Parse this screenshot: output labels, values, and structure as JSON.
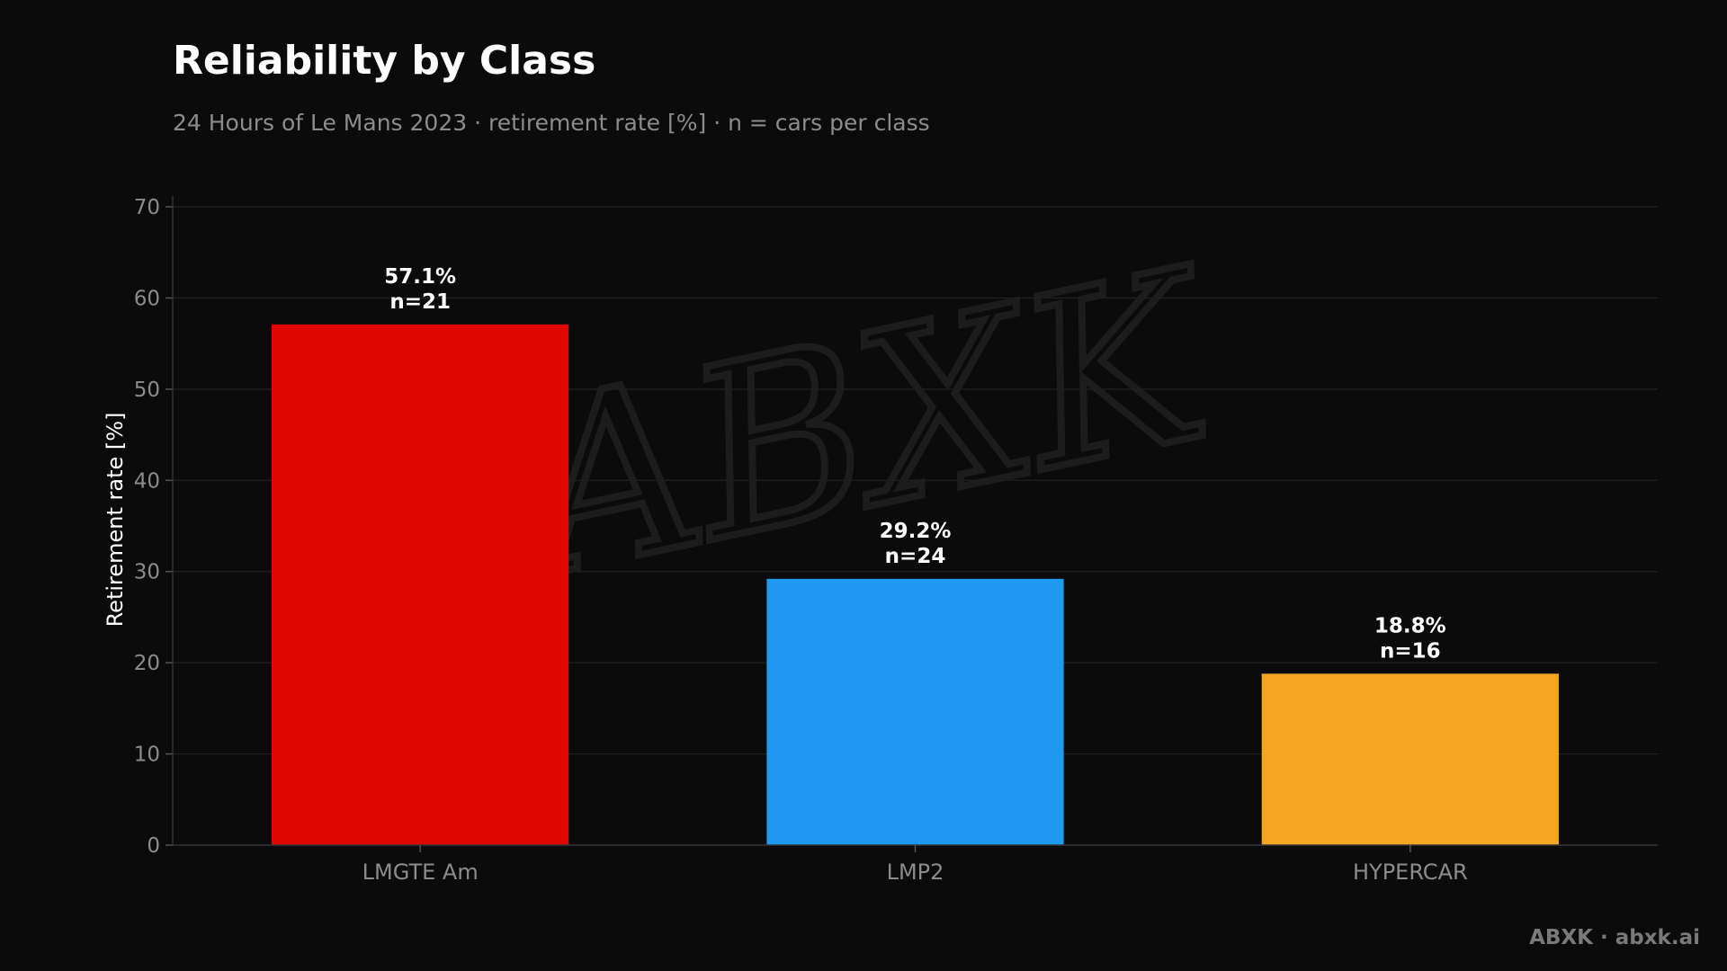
{
  "header": {
    "title": "Reliability by Class",
    "subtitle": "24 Hours of Le Mans 2023 · retirement rate [%] · n = cars per class"
  },
  "footer": {
    "credit": "ABXK · abxk.ai"
  },
  "watermark": {
    "text": "ABXK"
  },
  "chart_data": {
    "type": "bar",
    "categories": [
      "LMGTE Am",
      "LMP2",
      "HYPERCAR"
    ],
    "values": [
      57.1,
      29.2,
      18.8
    ],
    "value_labels": [
      "57.1%",
      "29.2%",
      "18.8%"
    ],
    "n_labels": [
      "n=21",
      "n=24",
      "n=16"
    ],
    "colors": [
      "#e00700",
      "#1e9bf0",
      "#f5a623"
    ],
    "ylabel": "Retirement rate [%]",
    "ylim": [
      0,
      70
    ],
    "yticks": [
      0,
      10,
      20,
      30,
      40,
      50,
      60,
      70
    ],
    "grid": true
  }
}
